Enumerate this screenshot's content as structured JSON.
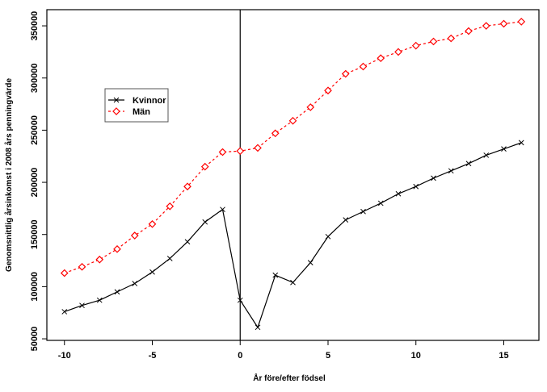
{
  "chart_data": {
    "type": "line",
    "title": "",
    "xlabel": "År före/efter födsel",
    "ylabel": "Genomsnittlig årsinkomst i 2008 års penningvärde",
    "xlim": [
      -11,
      17
    ],
    "ylim": [
      48500,
      365500
    ],
    "xticks": [
      -10,
      -5,
      0,
      5,
      10,
      15
    ],
    "xtick_labels": [
      "-10",
      "-5",
      "0",
      "5",
      "10",
      "15"
    ],
    "yticks": [
      50000,
      100000,
      150000,
      200000,
      250000,
      300000,
      350000
    ],
    "ytick_labels": [
      "50000",
      "100000",
      "150000",
      "200000",
      "250000",
      "300000",
      "350000"
    ],
    "vline": 0,
    "grid": false,
    "legend_position": "upper-left",
    "x": [
      -10,
      -9,
      -8,
      -7,
      -6,
      -5,
      -4,
      -3,
      -2,
      -1,
      0,
      1,
      2,
      3,
      4,
      5,
      6,
      7,
      8,
      9,
      10,
      11,
      12,
      13,
      14,
      15,
      16
    ],
    "series": [
      {
        "name": "Kvinnor",
        "color": "#000000",
        "marker": "x",
        "linestyle": "solid",
        "values": [
          76000,
          82000,
          87000,
          95000,
          103000,
          114000,
          127000,
          143000,
          162000,
          174000,
          87000,
          61000,
          111000,
          104000,
          123000,
          148000,
          164000,
          172000,
          180000,
          189000,
          196000,
          204000,
          211000,
          218000,
          226000,
          232000,
          238000
        ]
      },
      {
        "name": "Män",
        "color": "#ff0000",
        "marker": "diamond",
        "linestyle": "dotted",
        "values": [
          113000,
          119000,
          126000,
          136000,
          149000,
          160000,
          177000,
          196000,
          215000,
          229000,
          230000,
          233000,
          247000,
          259000,
          272000,
          288000,
          304000,
          311000,
          319000,
          325000,
          331000,
          335000,
          338000,
          345000,
          350000,
          352000,
          354000
        ]
      }
    ]
  }
}
